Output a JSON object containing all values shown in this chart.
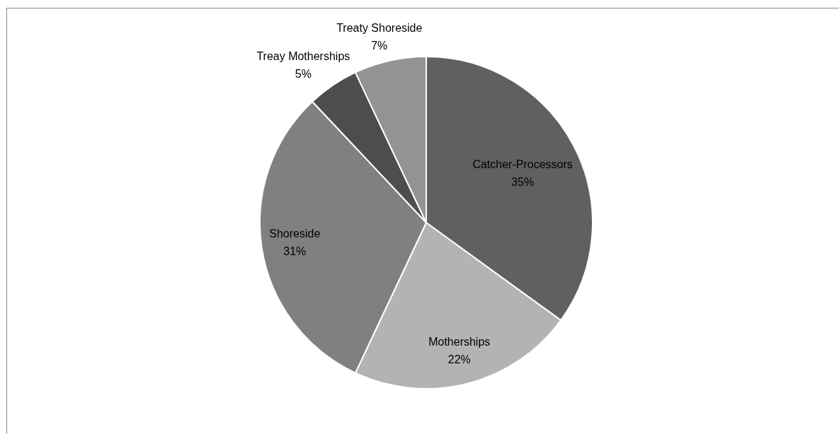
{
  "chart_data": {
    "type": "pie",
    "categories": [
      "Catcher-Processors",
      "Motherships",
      "Shoreside",
      "Treay Motherships",
      "Treaty Shoreside"
    ],
    "values": [
      35,
      22,
      31,
      5,
      7
    ],
    "colors": [
      "#606060",
      "#b3b3b3",
      "#808080",
      "#4d4d4d",
      "#939393"
    ],
    "value_labels": [
      "35%",
      "22%",
      "31%",
      "5%",
      "7%"
    ]
  }
}
